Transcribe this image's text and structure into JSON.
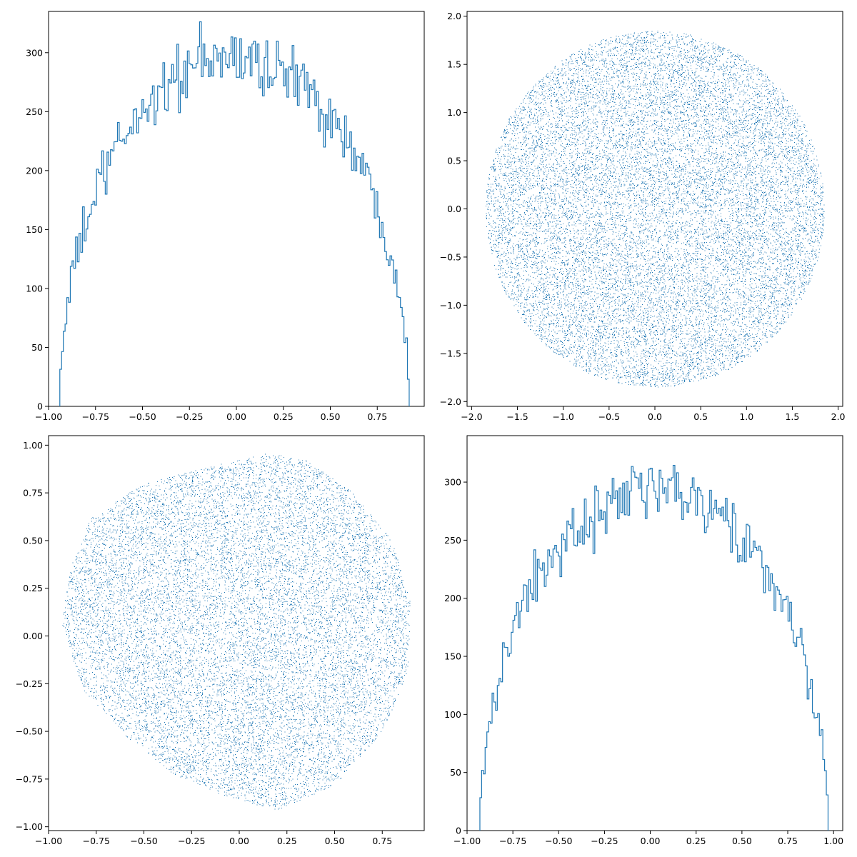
{
  "colors": {
    "series": "#1f77b4",
    "axes": "#000000",
    "background": "#ffffff"
  },
  "chart_data": [
    {
      "type": "histogram",
      "position": "top-left",
      "xlim": [
        -1.0,
        1.0
      ],
      "ylim": [
        0,
        335
      ],
      "xticks": [
        -1.0,
        -0.75,
        -0.5,
        -0.25,
        0.0,
        0.25,
        0.5,
        0.75
      ],
      "xtick_labels": [
        "−1.00",
        "−0.75",
        "−0.50",
        "−0.25",
        "0.00",
        "0.25",
        "0.50",
        "0.75"
      ],
      "yticks": [
        0,
        50,
        100,
        150,
        200,
        250,
        300
      ],
      "ytick_labels": [
        "0",
        "50",
        "100",
        "150",
        "200",
        "250",
        "300"
      ],
      "bin_range": [
        -0.94,
        0.92
      ],
      "peak_center": -0.01,
      "peak_height": 295,
      "noise": 18,
      "bins": 200,
      "style": "step",
      "grid": false
    },
    {
      "type": "scatter",
      "position": "top-right",
      "shape": "circle",
      "center": [
        0.0,
        0.0
      ],
      "radius": 1.85,
      "n_points": 36000,
      "xlim": [
        -2.05,
        2.05
      ],
      "ylim": [
        -2.05,
        2.05
      ],
      "xticks": [
        -2.0,
        -1.5,
        -1.0,
        -0.5,
        0.0,
        0.5,
        1.0,
        1.5,
        2.0
      ],
      "xtick_labels": [
        "−2.0",
        "−1.5",
        "−1.0",
        "−0.5",
        "0.0",
        "0.5",
        "1.0",
        "1.5",
        "2.0"
      ],
      "yticks": [
        -2.0,
        -1.5,
        -1.0,
        -0.5,
        0.0,
        0.5,
        1.0,
        1.5,
        2.0
      ],
      "ytick_labels": [
        "−2.0",
        "−1.5",
        "−1.0",
        "−0.5",
        "0.0",
        "0.5",
        "1.0",
        "1.5",
        "2.0"
      ],
      "grid": false
    },
    {
      "type": "scatter",
      "position": "bottom-left",
      "shape": "blob",
      "boundary": [
        [
          -0.93,
          0.05
        ],
        [
          -0.9,
          0.33
        ],
        [
          -0.78,
          0.62
        ],
        [
          -0.5,
          0.8
        ],
        [
          -0.2,
          0.88
        ],
        [
          0.15,
          0.96
        ],
        [
          0.35,
          0.92
        ],
        [
          0.6,
          0.75
        ],
        [
          0.8,
          0.5
        ],
        [
          0.9,
          0.18
        ],
        [
          0.88,
          -0.2
        ],
        [
          0.75,
          -0.5
        ],
        [
          0.5,
          -0.78
        ],
        [
          0.2,
          -0.91
        ],
        [
          -0.05,
          -0.85
        ],
        [
          -0.35,
          -0.72
        ],
        [
          -0.6,
          -0.52
        ],
        [
          -0.82,
          -0.28
        ]
      ],
      "n_points": 30000,
      "xlim": [
        -1.0,
        0.97
      ],
      "ylim": [
        -1.02,
        1.05
      ],
      "xticks": [
        -1.0,
        -0.75,
        -0.5,
        -0.25,
        0.0,
        0.25,
        0.5,
        0.75
      ],
      "xtick_labels": [
        "−1.00",
        "−0.75",
        "−0.50",
        "−0.25",
        "0.00",
        "0.25",
        "0.50",
        "0.75"
      ],
      "yticks": [
        -1.0,
        -0.75,
        -0.5,
        -0.25,
        0.0,
        0.25,
        0.5,
        0.75,
        1.0
      ],
      "ytick_labels": [
        "−1.00",
        "−0.75",
        "−0.50",
        "−0.25",
        "0.00",
        "0.25",
        "0.50",
        "0.75",
        "1.00"
      ],
      "grid": false
    },
    {
      "type": "histogram",
      "position": "bottom-right",
      "xlim": [
        -1.0,
        1.05
      ],
      "ylim": [
        0,
        340
      ],
      "xticks": [
        -1.0,
        -0.75,
        -0.5,
        -0.25,
        0.0,
        0.25,
        0.5,
        0.75,
        1.0
      ],
      "xtick_labels": [
        "−1.00",
        "−0.75",
        "−0.50",
        "−0.25",
        "0.00",
        "0.25",
        "0.50",
        "0.75",
        "1.00"
      ],
      "yticks": [
        0,
        50,
        100,
        150,
        200,
        250,
        300
      ],
      "ytick_labels": [
        "0",
        "50",
        "100",
        "150",
        "200",
        "250",
        "300"
      ],
      "bin_range": [
        -0.93,
        0.97
      ],
      "peak_center": 0.02,
      "peak_height": 290,
      "noise": 17,
      "bins": 200,
      "style": "step",
      "grid": false
    }
  ]
}
